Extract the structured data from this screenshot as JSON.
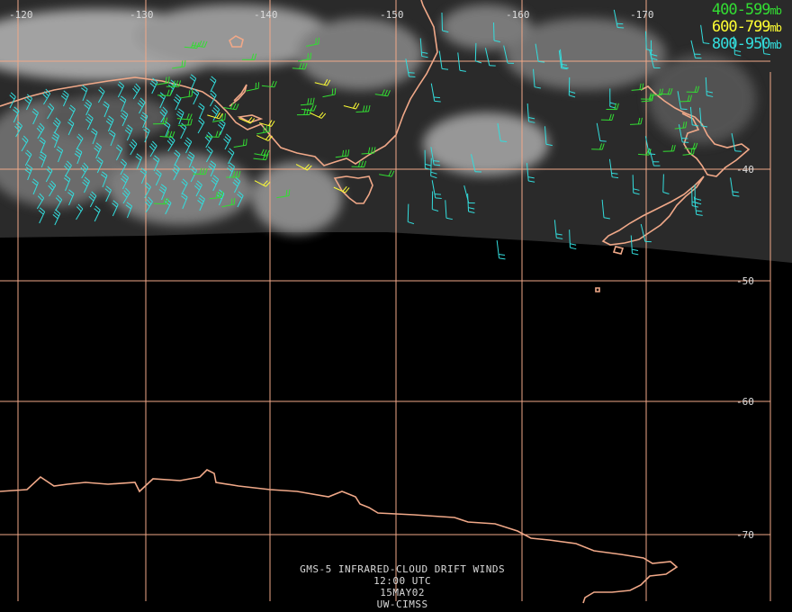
{
  "map": {
    "longitude_labels": [
      "-120",
      "-130",
      "-140",
      "-150",
      "-160",
      "-170"
    ],
    "latitude_labels": [
      "-40",
      "-50",
      "-60",
      "-70"
    ]
  },
  "legend": {
    "items": [
      {
        "range": "400-599",
        "unit": "mb",
        "color": "#33dd33"
      },
      {
        "range": "600-799",
        "unit": "mb",
        "color": "#ffff33"
      },
      {
        "range": "800-950",
        "unit": "mb",
        "color": "#33dddd"
      }
    ]
  },
  "caption": {
    "product": "GMS-5 INFRARED-CLOUD DRIFT WINDS",
    "time": "12:00 UTC",
    "date": "15MAY02",
    "source": "UW-CIMSS"
  },
  "colors": {
    "coastline": "#f0a888",
    "gridline": "#f0a888",
    "background": "#000000"
  }
}
